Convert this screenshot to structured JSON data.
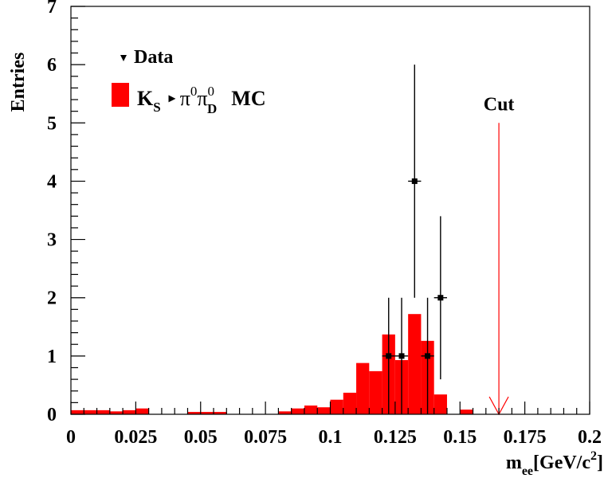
{
  "chart_data": {
    "type": "bar",
    "title": "",
    "xlabel": {
      "main": "m",
      "sub": "ee",
      "unit_pre": "[GeV/c",
      "unit_sup": "2",
      "unit_post": "]"
    },
    "ylabel": "Entries",
    "xlim": [
      0,
      0.2
    ],
    "ylim": [
      0,
      7
    ],
    "x_ticks": [
      {
        "value": 0,
        "label": "0"
      },
      {
        "value": 0.025,
        "label": "0.025"
      },
      {
        "value": 0.05,
        "label": "0.05"
      },
      {
        "value": 0.075,
        "label": "0.075"
      },
      {
        "value": 0.1,
        "label": "0.1"
      },
      {
        "value": 0.125,
        "label": "0.125"
      },
      {
        "value": 0.15,
        "label": "0.15"
      },
      {
        "value": 0.175,
        "label": "0.175"
      },
      {
        "value": 0.2,
        "label": "0.2"
      }
    ],
    "y_ticks": [
      {
        "value": 0,
        "label": "0"
      },
      {
        "value": 1,
        "label": "1"
      },
      {
        "value": 2,
        "label": "2"
      },
      {
        "value": 3,
        "label": "3"
      },
      {
        "value": 4,
        "label": "4"
      },
      {
        "value": 5,
        "label": "5"
      },
      {
        "value": 6,
        "label": "6"
      },
      {
        "value": 7,
        "label": "7"
      }
    ],
    "histogram": {
      "name_parts": {
        "k": "K",
        "k_sub": "S",
        "arrow": "▸",
        "pi1": "π",
        "pi1_sup": "0",
        "pi2": "π",
        "pi2_sup": "0",
        "pi2_sub": "D",
        "mc": "MC"
      },
      "color": "#ff0000",
      "bin_width": 0.005,
      "bin_edges_start": 0,
      "values": [
        0.07,
        0.07,
        0.07,
        0.05,
        0.07,
        0.1,
        0,
        0,
        0,
        0.04,
        0.04,
        0.04,
        0,
        0,
        0,
        0,
        0.05,
        0.1,
        0.15,
        0.12,
        0.25,
        0.37,
        0.88,
        0.74,
        1.37,
        0.93,
        1.72,
        1.26,
        0.34,
        0,
        0.08,
        0,
        0,
        0,
        0,
        0,
        0,
        0,
        0,
        0
      ]
    },
    "data_points": {
      "name": "Data",
      "marker_color": "#000000",
      "points": [
        {
          "x": 0.1225,
          "y": 1,
          "ylow": 0,
          "yhigh": 2,
          "xerr": 0.0025
        },
        {
          "x": 0.1275,
          "y": 1,
          "ylow": 0,
          "yhigh": 2,
          "xerr": 0.0025
        },
        {
          "x": 0.1325,
          "y": 4,
          "ylow": 2,
          "yhigh": 6,
          "xerr": 0.0025
        },
        {
          "x": 0.1375,
          "y": 1,
          "ylow": 0,
          "yhigh": 2,
          "xerr": 0.0025
        },
        {
          "x": 0.1425,
          "y": 2,
          "ylow": 0.6,
          "yhigh": 3.4,
          "xerr": 0.0025
        }
      ]
    },
    "cut": {
      "label": "Cut",
      "x": 0.165,
      "y_top": 5.0,
      "color": "#ff0000"
    },
    "legend_position": "top-left",
    "grid": false
  }
}
